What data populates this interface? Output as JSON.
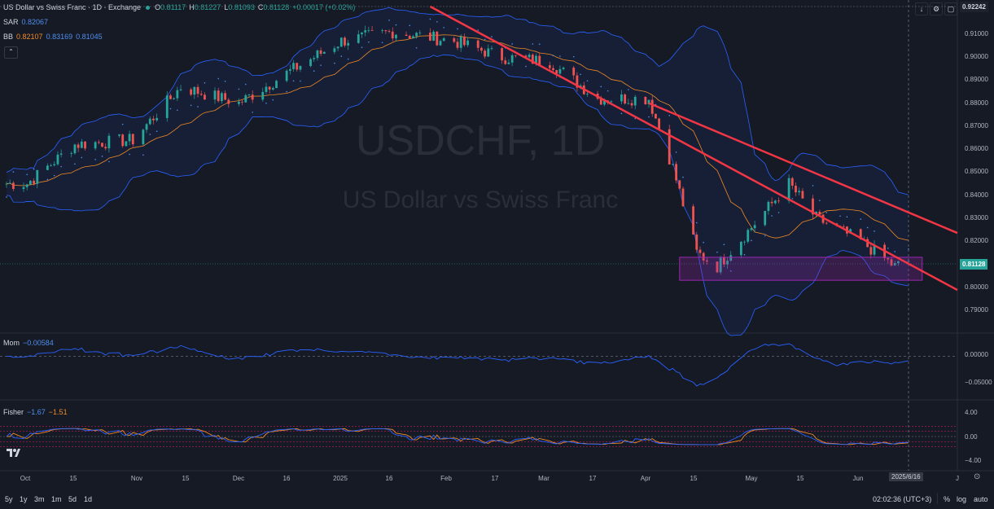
{
  "header": {
    "symbol_title": "US Dollar vs Swiss Franc · 1D · Exchange",
    "ohlc": [
      {
        "label": "O",
        "value": "0.81117"
      },
      {
        "label": "H",
        "value": "0.81227"
      },
      {
        "label": "L",
        "value": "0.81093"
      },
      {
        "label": "C",
        "value": "0.81128"
      }
    ],
    "change": "+0.00017 (+0.02%)"
  },
  "indicators": {
    "sar": {
      "name": "SAR",
      "value": "0.82067"
    },
    "bb": {
      "name": "BB",
      "values": [
        "0.82107",
        "0.83169",
        "0.81045"
      ]
    },
    "mom": {
      "name": "Mom",
      "value": "−0.00584"
    },
    "fisher": {
      "name": "Fisher",
      "values": [
        "−1.67",
        "−1.51"
      ]
    }
  },
  "watermark": {
    "ticker": "USDCHF, 1D",
    "description": "US Dollar vs Swiss Franc"
  },
  "price_axis": {
    "labels": [
      "0.91000",
      "0.90000",
      "0.89000",
      "0.88000",
      "0.87000",
      "0.86000",
      "0.85000",
      "0.84000",
      "0.83000",
      "0.82000",
      "0.80000",
      "0.79000"
    ],
    "top_badge": "0.92242",
    "current_badge": "0.81128"
  },
  "mom_axis": {
    "labels": [
      "0.00000",
      "−0.05000"
    ]
  },
  "fisher_axis": {
    "labels": [
      "4.00",
      "0.00",
      "−4.00"
    ]
  },
  "time_axis": {
    "labels": [
      "Oct",
      "15",
      "Nov",
      "15",
      "Dec",
      "16",
      "2025",
      "16",
      "Feb",
      "17",
      "Mar",
      "17",
      "Apr",
      "15",
      "May",
      "15",
      "Jun",
      "J"
    ],
    "cursor_date": "2025/6/16"
  },
  "bottom_bar": {
    "ranges": [
      "5y",
      "1y",
      "3m",
      "1m",
      "5d",
      "1d"
    ],
    "clock": "02:02:36 (UTC+3)",
    "percent": "%",
    "log": "log",
    "auto": "auto"
  },
  "colors": {
    "background": "#161a25",
    "up": "#26a69a",
    "down": "#ef5350",
    "trendline": "#f23645",
    "band": "#2962ff",
    "basis": "#f08a24",
    "zone": "#9c27b0"
  },
  "chart_data": {
    "type": "candlestick",
    "symbol": "USDCHF",
    "timeframe": "1D",
    "x_range": [
      "2024-09-25",
      "2025-06-16"
    ],
    "y_range": [
      0.785,
      0.922
    ],
    "last": {
      "open": 0.81117,
      "high": 0.81227,
      "low": 0.81093,
      "close": 0.81128
    },
    "approx_closes": [
      {
        "date": "2024-10-01",
        "close": 0.845
      },
      {
        "date": "2024-10-15",
        "close": 0.862
      },
      {
        "date": "2024-11-01",
        "close": 0.864
      },
      {
        "date": "2024-11-15",
        "close": 0.887
      },
      {
        "date": "2024-12-02",
        "close": 0.88
      },
      {
        "date": "2024-12-16",
        "close": 0.893
      },
      {
        "date": "2025-01-01",
        "close": 0.907
      },
      {
        "date": "2025-01-16",
        "close": 0.911
      },
      {
        "date": "2025-02-03",
        "close": 0.907
      },
      {
        "date": "2025-02-17",
        "close": 0.9
      },
      {
        "date": "2025-03-03",
        "close": 0.898
      },
      {
        "date": "2025-03-17",
        "close": 0.882
      },
      {
        "date": "2025-04-01",
        "close": 0.882
      },
      {
        "date": "2025-04-08",
        "close": 0.852
      },
      {
        "date": "2025-04-15",
        "close": 0.815
      },
      {
        "date": "2025-04-21",
        "close": 0.809
      },
      {
        "date": "2025-05-01",
        "close": 0.826
      },
      {
        "date": "2025-05-12",
        "close": 0.845
      },
      {
        "date": "2025-05-20",
        "close": 0.83
      },
      {
        "date": "2025-06-02",
        "close": 0.82
      },
      {
        "date": "2025-06-12",
        "close": 0.809
      },
      {
        "date": "2025-06-16",
        "close": 0.81128
      }
    ],
    "trendlines": [
      {
        "from": {
          "date": "2025-01-27",
          "price": 0.922
        },
        "to": {
          "date": "2025-06-20",
          "price": 0.807
        }
      },
      {
        "from": {
          "date": "2025-04-01",
          "price": 0.88
        },
        "to": {
          "date": "2025-06-20",
          "price": 0.83
        }
      }
    ],
    "support_zone": {
      "from_date": "2025-04-10",
      "to_date": "2025-06-20",
      "low": 0.803,
      "high": 0.813
    },
    "momentum_range": [
      -0.09,
      0.035
    ],
    "fisher_range": [
      -4.5,
      4.5
    ]
  }
}
